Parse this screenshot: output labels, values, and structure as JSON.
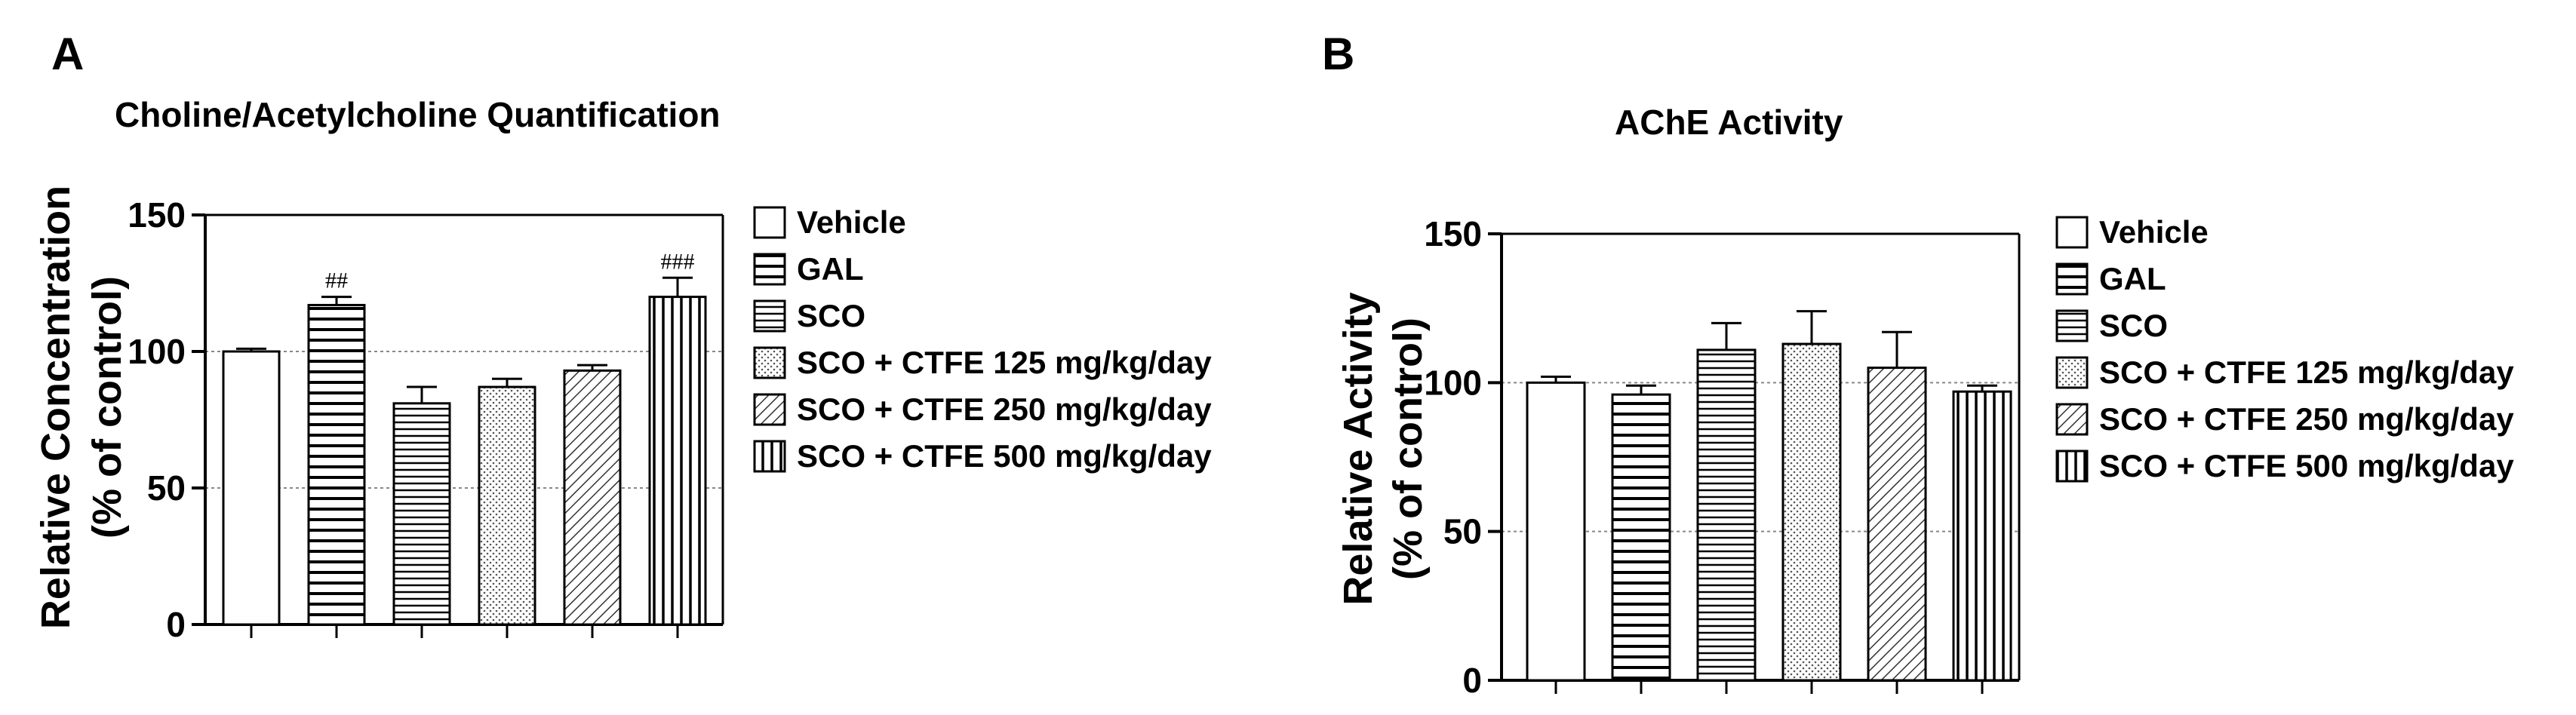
{
  "chart_data": [
    {
      "type": "bar",
      "panel": "A",
      "title": "Choline/Acetylcholine Quantification",
      "ylabel": "Relative Concentration",
      "ylabel2": "(% of control)",
      "ylim": [
        0,
        150
      ],
      "yticks": [
        0,
        50,
        100,
        150
      ],
      "grid": "dashed at 50, 100",
      "legend_position": "right",
      "categories": [
        "Vehicle",
        "GAL",
        "SCO",
        "SCO + CTFE 125 mg/kg/day",
        "SCO + CTFE 250 mg/kg/day",
        "SCO + CTFE 500 mg/kg/day"
      ],
      "patterns": [
        "blank",
        "hlines-wide",
        "hlines-fine",
        "dots",
        "diag",
        "vlines"
      ],
      "values": [
        100,
        117,
        81,
        87,
        93,
        120
      ],
      "errors": [
        1,
        3,
        6,
        3,
        2,
        7
      ],
      "annotations": [
        "",
        "##",
        "",
        "",
        "",
        "###"
      ]
    },
    {
      "type": "bar",
      "panel": "B",
      "title": "AChE Activity",
      "ylabel": "Relative Activity",
      "ylabel2": "(% of control)",
      "ylim": [
        0,
        150
      ],
      "yticks": [
        0,
        50,
        100,
        150
      ],
      "grid": "dashed at 50, 100",
      "legend_position": "right",
      "categories": [
        "Vehicle",
        "GAL",
        "SCO",
        "SCO + CTFE 125 mg/kg/day",
        "SCO + CTFE 250 mg/kg/day",
        "SCO + CTFE 500 mg/kg/day"
      ],
      "patterns": [
        "blank",
        "hlines-wide",
        "hlines-fine",
        "dots",
        "diag",
        "vlines"
      ],
      "values": [
        100,
        96,
        111,
        113,
        105,
        97
      ],
      "errors": [
        2,
        3,
        9,
        11,
        12,
        2
      ],
      "annotations": [
        "",
        "",
        "",
        "",
        "",
        ""
      ]
    }
  ]
}
